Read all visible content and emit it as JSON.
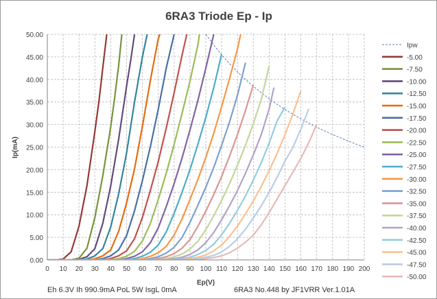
{
  "chart_data": {
    "type": "line",
    "title": "6RA3 Triode Ep - Ip",
    "xlabel": "Ep(V)",
    "ylabel": "Ip(mA)",
    "xlim": [
      0,
      200
    ],
    "ylim": [
      0,
      50
    ],
    "xticks": [
      "0",
      "10",
      "20",
      "30",
      "40",
      "50",
      "60",
      "70",
      "80",
      "90",
      "100",
      "110",
      "120",
      "130",
      "140",
      "150",
      "160",
      "170",
      "180",
      "190",
      "200"
    ],
    "yticks": [
      "0.00",
      "5.00",
      "10.00",
      "15.00",
      "20.00",
      "25.00",
      "30.00",
      "35.00",
      "40.00",
      "45.00",
      "50.00"
    ],
    "grid": true,
    "legend_position": "right",
    "footer_left": "Eh  6.3V Ih  990.9mA PoL  5W IsgL  0mA",
    "footer_right": "6RA3 No.448  by JF1VRR Ver.1.01A",
    "pw_curve": {
      "name": "Ipw",
      "color": "#5b7db8",
      "x": [
        100,
        105,
        110,
        115,
        120,
        125,
        130,
        135,
        140,
        145,
        150,
        155,
        160,
        165,
        170,
        175,
        180,
        185,
        190,
        195,
        200
      ],
      "y": [
        50.0,
        47.62,
        45.45,
        43.48,
        41.67,
        40.0,
        38.46,
        37.04,
        35.71,
        34.48,
        33.33,
        32.26,
        31.25,
        30.3,
        29.41,
        28.57,
        27.78,
        27.03,
        26.32,
        25.64,
        25.0
      ]
    },
    "series": [
      {
        "name": "-5.00",
        "color": "#953735",
        "x": [
          0,
          5,
          10,
          15,
          20,
          25,
          30,
          32.5,
          35,
          37.5
        ],
        "y": [
          0,
          0.02,
          0.2,
          1.8,
          7.5,
          16.5,
          28.5,
          35.0,
          42.5,
          50.0
        ]
      },
      {
        "name": "-7.50",
        "color": "#77933c",
        "x": [
          0,
          10,
          15,
          20,
          25,
          30,
          35,
          40,
          42.5,
          45,
          47
        ],
        "y": [
          0,
          0.01,
          0.05,
          0.4,
          2.6,
          9.4,
          18.6,
          29.5,
          36.0,
          43.0,
          50.0
        ]
      },
      {
        "name": "-10.00",
        "color": "#604a7b",
        "x": [
          0,
          15,
          20,
          25,
          30,
          35,
          40,
          45,
          50,
          52.5,
          55
        ],
        "y": [
          0,
          0.01,
          0.15,
          0.7,
          2.5,
          8.1,
          16.4,
          26.7,
          38.5,
          44.0,
          50.0
        ]
      },
      {
        "name": "-12.50",
        "color": "#31859c",
        "x": [
          0,
          20,
          25,
          30,
          35,
          40,
          45,
          50,
          55,
          60,
          63
        ],
        "y": [
          0,
          0.02,
          0.2,
          0.9,
          2.5,
          7.3,
          14.6,
          23.7,
          35.0,
          45.0,
          50.0
        ]
      },
      {
        "name": "-15.00",
        "color": "#e46c0a",
        "x": [
          0,
          25,
          30,
          35,
          40,
          45,
          50,
          55,
          60,
          65,
          70,
          71
        ],
        "y": [
          0,
          0.05,
          0.25,
          0.9,
          2.2,
          6.3,
          12.6,
          20.2,
          29.6,
          39.8,
          49.0,
          50.0
        ]
      },
      {
        "name": "-17.50",
        "color": "#4a6fa5",
        "x": [
          0,
          30,
          35,
          40,
          45,
          50,
          55,
          60,
          65,
          70,
          75,
          80
        ],
        "y": [
          0,
          0.05,
          0.3,
          0.9,
          2.2,
          5.4,
          10.9,
          17.6,
          25.1,
          33.4,
          42.5,
          50.0
        ]
      },
      {
        "name": "-20.00",
        "color": "#c0504d",
        "x": [
          0,
          35,
          40,
          45,
          50,
          55,
          60,
          65,
          70,
          75,
          80,
          85,
          88
        ],
        "y": [
          0,
          0.05,
          0.3,
          0.9,
          2.0,
          4.7,
          9.4,
          15.4,
          21.8,
          29.2,
          37.0,
          45.4,
          50.0
        ]
      },
      {
        "name": "-22.50",
        "color": "#9bbb59",
        "x": [
          0,
          40,
          45,
          50,
          55,
          60,
          65,
          70,
          75,
          80,
          85,
          90,
          95,
          96
        ],
        "y": [
          0,
          0.05,
          0.3,
          0.8,
          1.9,
          4.2,
          8.1,
          13.4,
          19.2,
          25.6,
          32.5,
          39.6,
          47.6,
          50.0
        ]
      },
      {
        "name": "-25.00",
        "color": "#8064a2",
        "x": [
          0,
          45,
          50,
          55,
          60,
          65,
          70,
          75,
          80,
          85,
          90,
          95,
          100,
          105
        ],
        "y": [
          0,
          0.05,
          0.3,
          0.8,
          1.8,
          3.8,
          7.1,
          11.8,
          16.9,
          22.6,
          28.8,
          35.3,
          42.5,
          50.0
        ]
      },
      {
        "name": "-27.50",
        "color": "#4bacc6",
        "x": [
          0,
          50,
          55,
          60,
          65,
          70,
          75,
          80,
          85,
          90,
          95,
          100,
          105,
          110
        ],
        "y": [
          0,
          0.05,
          0.3,
          0.8,
          1.7,
          3.3,
          6.2,
          10.3,
          15.0,
          20.0,
          25.6,
          31.6,
          38.2,
          45.6
        ]
      },
      {
        "name": "-30.00",
        "color": "#f79646",
        "x": [
          0,
          55,
          60,
          65,
          70,
          75,
          80,
          85,
          90,
          95,
          100,
          105,
          110,
          115,
          120,
          122
        ],
        "y": [
          0,
          0.05,
          0.3,
          0.8,
          1.6,
          3.0,
          5.5,
          9.1,
          13.4,
          17.8,
          22.7,
          28.1,
          34.0,
          40.2,
          46.8,
          50.0
        ]
      },
      {
        "name": "-32.50",
        "color": "#7f9fcf",
        "x": [
          0,
          60,
          65,
          70,
          75,
          80,
          85,
          90,
          95,
          100,
          105,
          110,
          115,
          120,
          125
        ],
        "y": [
          0,
          0.05,
          0.3,
          0.7,
          1.5,
          2.8,
          5.0,
          8.3,
          12.1,
          16.1,
          20.5,
          25.4,
          30.6,
          36.5,
          43.7
        ]
      },
      {
        "name": "-35.00",
        "color": "#d99694",
        "x": [
          0,
          65,
          70,
          75,
          80,
          85,
          90,
          95,
          100,
          105,
          110,
          115,
          120,
          125,
          130
        ],
        "y": [
          0,
          0.05,
          0.3,
          0.7,
          1.4,
          2.6,
          4.5,
          7.4,
          10.8,
          14.5,
          18.5,
          23.0,
          27.8,
          33.1,
          38.8
        ]
      },
      {
        "name": "-37.50",
        "color": "#c3d69b",
        "x": [
          0,
          70,
          75,
          80,
          85,
          90,
          95,
          100,
          105,
          110,
          115,
          120,
          125,
          130,
          135,
          140
        ],
        "y": [
          0,
          0.05,
          0.3,
          0.7,
          1.3,
          2.4,
          4.1,
          6.7,
          9.8,
          13.2,
          16.9,
          21.0,
          25.4,
          30.2,
          35.6,
          43.0
        ]
      },
      {
        "name": "-40.00",
        "color": "#b3a2c7",
        "x": [
          0,
          75,
          80,
          85,
          90,
          95,
          100,
          105,
          110,
          115,
          120,
          125,
          130,
          135,
          140,
          143
        ],
        "y": [
          0,
          0.05,
          0.3,
          0.6,
          1.2,
          2.2,
          3.8,
          6.1,
          8.9,
          12.0,
          15.4,
          19.2,
          23.3,
          27.8,
          33.5,
          38.2
        ]
      },
      {
        "name": "-42.50",
        "color": "#93cddd",
        "x": [
          0,
          80,
          85,
          90,
          95,
          100,
          105,
          110,
          115,
          120,
          125,
          130,
          135,
          140,
          145,
          150
        ],
        "y": [
          0,
          0.05,
          0.3,
          0.6,
          1.2,
          2.1,
          3.5,
          5.6,
          8.1,
          11.0,
          14.2,
          17.7,
          21.6,
          25.9,
          30.8,
          33.9
        ]
      },
      {
        "name": "-45.00",
        "color": "#fac090",
        "x": [
          0,
          85,
          90,
          95,
          100,
          105,
          110,
          115,
          120,
          125,
          130,
          135,
          140,
          145,
          150,
          155,
          160
        ],
        "y": [
          0,
          0.05,
          0.3,
          0.6,
          1.1,
          2.0,
          3.3,
          5.2,
          7.5,
          10.2,
          13.1,
          16.3,
          19.8,
          23.6,
          27.8,
          32.4,
          37.5
        ]
      },
      {
        "name": "-47.50",
        "color": "#b9cde5",
        "x": [
          0,
          90,
          95,
          100,
          105,
          110,
          115,
          120,
          125,
          130,
          135,
          140,
          145,
          150,
          155,
          160,
          165
        ],
        "y": [
          0,
          0.05,
          0.3,
          0.6,
          1.0,
          1.8,
          3.0,
          4.7,
          6.8,
          9.3,
          12.0,
          15.0,
          18.3,
          21.9,
          25.0,
          29.0,
          33.5
        ]
      },
      {
        "name": "-50.00",
        "color": "#e6b9b8",
        "x": [
          0,
          95,
          100,
          105,
          110,
          115,
          120,
          125,
          130,
          135,
          140,
          145,
          150,
          155,
          160,
          165,
          170
        ],
        "y": [
          0,
          0.05,
          0.3,
          0.5,
          0.9,
          1.6,
          2.6,
          3.9,
          5.5,
          7.8,
          10.5,
          13.5,
          16.5,
          19.5,
          22.5,
          26.0,
          30.0
        ]
      }
    ]
  }
}
